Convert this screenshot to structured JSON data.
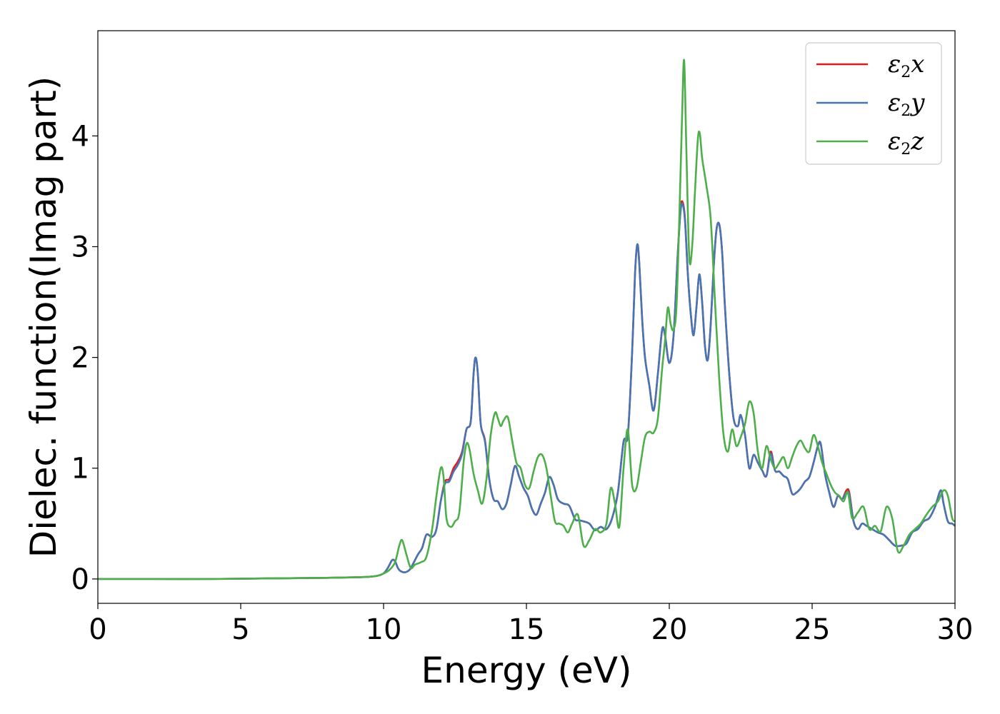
{
  "chart_data": {
    "type": "line",
    "title": "",
    "xlabel": "Energy (eV)",
    "ylabel": "Dielec. function(Imag part)",
    "xlim": [
      0,
      30
    ],
    "ylim": [
      -0.22,
      4.95
    ],
    "xticks": [
      0,
      5,
      10,
      15,
      20,
      25,
      30
    ],
    "yticks": [
      0,
      1,
      2,
      3,
      4
    ],
    "grid": false,
    "legend_position": "top-right",
    "series": [
      {
        "name": "ε2x",
        "label_base": "ε",
        "label_sub": "2",
        "label_suffix": "x",
        "color": "#e41a1c",
        "x": [
          0,
          2,
          4,
          6,
          8,
          9,
          9.5,
          9.8,
          10.0,
          10.15,
          10.3,
          10.4,
          10.5,
          10.6,
          10.75,
          10.9,
          11.0,
          11.2,
          11.35,
          11.5,
          11.7,
          11.85,
          12.0,
          12.15,
          12.3,
          12.45,
          12.6,
          12.75,
          12.9,
          13.05,
          13.15,
          13.22,
          13.3,
          13.4,
          13.55,
          13.7,
          13.85,
          14.0,
          14.15,
          14.3,
          14.45,
          14.6,
          14.75,
          14.9,
          15.05,
          15.2,
          15.35,
          15.5,
          15.65,
          15.8,
          15.95,
          16.1,
          16.3,
          16.5,
          16.7,
          16.85,
          17.0,
          17.2,
          17.4,
          17.6,
          17.8,
          18.0,
          18.2,
          18.4,
          18.55,
          18.7,
          18.8,
          18.88,
          18.95,
          19.05,
          19.15,
          19.3,
          19.45,
          19.6,
          19.75,
          19.85,
          20.0,
          20.15,
          20.3,
          20.4,
          20.47,
          20.55,
          20.65,
          20.75,
          20.85,
          20.95,
          21.05,
          21.15,
          21.25,
          21.35,
          21.45,
          21.55,
          21.65,
          21.75,
          21.85,
          21.95,
          22.1,
          22.25,
          22.4,
          22.5,
          22.65,
          22.8,
          22.95,
          23.1,
          23.25,
          23.4,
          23.55,
          23.7,
          23.85,
          24.0,
          24.15,
          24.3,
          24.45,
          24.6,
          24.75,
          24.9,
          25.05,
          25.2,
          25.3,
          25.45,
          25.6,
          25.75,
          25.9,
          26.05,
          26.2,
          26.3,
          26.45,
          26.6,
          26.75,
          26.9,
          27.1,
          27.3,
          27.5,
          27.7,
          27.9,
          28.1,
          28.3,
          28.5,
          28.7,
          28.9,
          29.1,
          29.3,
          29.5,
          29.6,
          29.75,
          29.9,
          30.0
        ],
        "y": [
          0.0,
          0.0,
          0.0,
          0.005,
          0.01,
          0.015,
          0.02,
          0.03,
          0.05,
          0.1,
          0.17,
          0.16,
          0.1,
          0.07,
          0.06,
          0.08,
          0.12,
          0.22,
          0.28,
          0.4,
          0.38,
          0.45,
          0.7,
          0.88,
          0.9,
          1.0,
          1.06,
          1.15,
          1.35,
          1.42,
          1.85,
          2.0,
          1.85,
          1.4,
          1.25,
          0.9,
          0.72,
          0.7,
          0.63,
          0.68,
          0.85,
          1.02,
          0.92,
          0.82,
          0.75,
          0.63,
          0.58,
          0.68,
          0.78,
          0.92,
          0.85,
          0.72,
          0.68,
          0.66,
          0.54,
          0.53,
          0.52,
          0.5,
          0.44,
          0.47,
          0.45,
          0.55,
          0.78,
          1.24,
          1.3,
          2.05,
          2.75,
          3.02,
          2.85,
          2.35,
          2.0,
          1.75,
          1.52,
          1.85,
          2.25,
          2.2,
          1.95,
          2.2,
          2.95,
          3.35,
          3.4,
          3.25,
          2.75,
          2.4,
          2.2,
          2.45,
          2.75,
          2.5,
          2.1,
          1.98,
          2.3,
          2.8,
          3.15,
          3.2,
          2.95,
          2.45,
          1.85,
          1.45,
          1.38,
          1.48,
          1.3,
          1.0,
          1.12,
          1.05,
          0.98,
          0.93,
          1.15,
          0.98,
          0.97,
          0.93,
          0.9,
          0.77,
          0.78,
          0.82,
          0.88,
          0.92,
          1.05,
          1.2,
          1.22,
          0.95,
          0.78,
          0.65,
          0.75,
          0.72,
          0.8,
          0.78,
          0.52,
          0.45,
          0.5,
          0.48,
          0.45,
          0.42,
          0.4,
          0.35,
          0.3,
          0.3,
          0.32,
          0.42,
          0.45,
          0.52,
          0.55,
          0.65,
          0.8,
          0.68,
          0.52,
          0.5,
          0.48
        ]
      },
      {
        "name": "ε2y",
        "label_base": "ε",
        "label_sub": "2",
        "label_suffix": "y",
        "color": "#4575b4",
        "x": [
          0,
          2,
          4,
          6,
          8,
          9,
          9.5,
          9.8,
          10.0,
          10.15,
          10.3,
          10.4,
          10.5,
          10.6,
          10.75,
          10.9,
          11.0,
          11.2,
          11.35,
          11.5,
          11.7,
          11.85,
          12.0,
          12.15,
          12.3,
          12.45,
          12.6,
          12.75,
          12.9,
          13.05,
          13.15,
          13.22,
          13.3,
          13.4,
          13.55,
          13.7,
          13.85,
          14.0,
          14.15,
          14.3,
          14.45,
          14.6,
          14.75,
          14.9,
          15.05,
          15.2,
          15.35,
          15.5,
          15.65,
          15.8,
          15.95,
          16.1,
          16.3,
          16.5,
          16.7,
          16.85,
          17.0,
          17.2,
          17.4,
          17.6,
          17.8,
          18.0,
          18.2,
          18.4,
          18.55,
          18.7,
          18.8,
          18.88,
          18.95,
          19.05,
          19.15,
          19.3,
          19.45,
          19.6,
          19.75,
          19.85,
          20.0,
          20.15,
          20.3,
          20.4,
          20.47,
          20.55,
          20.65,
          20.75,
          20.85,
          20.95,
          21.05,
          21.15,
          21.25,
          21.35,
          21.45,
          21.55,
          21.65,
          21.75,
          21.85,
          21.95,
          22.1,
          22.25,
          22.4,
          22.5,
          22.65,
          22.8,
          22.95,
          23.1,
          23.25,
          23.4,
          23.55,
          23.7,
          23.85,
          24.0,
          24.15,
          24.3,
          24.45,
          24.6,
          24.75,
          24.9,
          25.05,
          25.2,
          25.3,
          25.45,
          25.6,
          25.75,
          25.9,
          26.05,
          26.2,
          26.3,
          26.45,
          26.6,
          26.75,
          26.9,
          27.1,
          27.3,
          27.5,
          27.7,
          27.9,
          28.1,
          28.3,
          28.5,
          28.7,
          28.9,
          29.1,
          29.3,
          29.5,
          29.6,
          29.75,
          29.9,
          30.0
        ],
        "y": [
          0.0,
          0.0,
          0.0,
          0.005,
          0.01,
          0.015,
          0.02,
          0.03,
          0.05,
          0.1,
          0.17,
          0.16,
          0.1,
          0.07,
          0.06,
          0.08,
          0.12,
          0.22,
          0.28,
          0.4,
          0.38,
          0.45,
          0.7,
          0.86,
          0.88,
          0.97,
          1.03,
          1.13,
          1.35,
          1.42,
          1.85,
          2.0,
          1.85,
          1.4,
          1.24,
          0.9,
          0.72,
          0.7,
          0.63,
          0.68,
          0.85,
          1.02,
          0.92,
          0.82,
          0.75,
          0.63,
          0.58,
          0.68,
          0.78,
          0.92,
          0.85,
          0.72,
          0.68,
          0.66,
          0.54,
          0.53,
          0.52,
          0.5,
          0.44,
          0.47,
          0.45,
          0.55,
          0.78,
          1.24,
          1.3,
          2.05,
          2.75,
          3.02,
          2.85,
          2.35,
          2.0,
          1.75,
          1.52,
          1.85,
          2.25,
          2.2,
          1.95,
          2.2,
          2.95,
          3.33,
          3.38,
          3.23,
          2.75,
          2.4,
          2.2,
          2.45,
          2.75,
          2.5,
          2.1,
          1.98,
          2.3,
          2.8,
          3.15,
          3.2,
          2.95,
          2.45,
          1.85,
          1.45,
          1.38,
          1.48,
          1.3,
          1.0,
          1.12,
          1.05,
          0.98,
          0.93,
          1.13,
          0.98,
          0.97,
          0.93,
          0.9,
          0.77,
          0.78,
          0.82,
          0.88,
          0.92,
          1.05,
          1.2,
          1.22,
          0.95,
          0.78,
          0.65,
          0.75,
          0.72,
          0.78,
          0.76,
          0.52,
          0.45,
          0.5,
          0.48,
          0.45,
          0.42,
          0.4,
          0.35,
          0.3,
          0.3,
          0.32,
          0.42,
          0.45,
          0.52,
          0.55,
          0.65,
          0.8,
          0.68,
          0.52,
          0.5,
          0.48
        ]
      },
      {
        "name": "ε2z",
        "label_base": "ε",
        "label_sub": "2",
        "label_suffix": "z",
        "color": "#4daf4a",
        "x": [
          0,
          2,
          4,
          6,
          8,
          9,
          9.5,
          9.8,
          10.0,
          10.2,
          10.4,
          10.55,
          10.65,
          10.8,
          10.95,
          11.1,
          11.3,
          11.5,
          11.7,
          11.85,
          12.0,
          12.1,
          12.2,
          12.35,
          12.5,
          12.65,
          12.8,
          12.9,
          13.0,
          13.15,
          13.3,
          13.45,
          13.6,
          13.75,
          13.9,
          14.0,
          14.1,
          14.2,
          14.35,
          14.5,
          14.65,
          14.8,
          14.95,
          15.1,
          15.25,
          15.4,
          15.55,
          15.7,
          15.85,
          16.0,
          16.15,
          16.3,
          16.45,
          16.6,
          16.8,
          17.0,
          17.2,
          17.4,
          17.6,
          17.8,
          17.95,
          18.1,
          18.25,
          18.4,
          18.55,
          18.7,
          18.85,
          19.0,
          19.15,
          19.3,
          19.45,
          19.6,
          19.75,
          19.85,
          19.95,
          20.05,
          20.15,
          20.25,
          20.35,
          20.45,
          20.52,
          20.6,
          20.7,
          20.8,
          20.9,
          21.0,
          21.07,
          21.15,
          21.3,
          21.45,
          21.6,
          21.75,
          21.9,
          22.05,
          22.2,
          22.35,
          22.5,
          22.65,
          22.8,
          22.95,
          23.1,
          23.25,
          23.4,
          23.55,
          23.7,
          23.85,
          24.0,
          24.15,
          24.3,
          24.45,
          24.6,
          24.75,
          24.9,
          25.05,
          25.2,
          25.35,
          25.5,
          25.65,
          25.8,
          25.95,
          26.1,
          26.25,
          26.4,
          26.6,
          26.8,
          27.0,
          27.2,
          27.4,
          27.6,
          27.8,
          28.0,
          28.2,
          28.4,
          28.6,
          28.8,
          29.0,
          29.2,
          29.4,
          29.6,
          29.75,
          29.9,
          30.0
        ],
        "y": [
          0.0,
          0.0,
          0.0,
          0.005,
          0.01,
          0.015,
          0.02,
          0.03,
          0.05,
          0.08,
          0.15,
          0.3,
          0.35,
          0.22,
          0.1,
          0.13,
          0.15,
          0.2,
          0.45,
          0.75,
          1.0,
          0.92,
          0.55,
          0.47,
          0.52,
          0.6,
          1.05,
          1.22,
          1.18,
          0.95,
          0.8,
          0.68,
          0.9,
          1.3,
          1.5,
          1.45,
          1.38,
          1.43,
          1.46,
          1.25,
          1.05,
          1.0,
          0.85,
          0.82,
          0.97,
          1.1,
          1.12,
          1.0,
          0.75,
          0.52,
          0.5,
          0.48,
          0.42,
          0.5,
          0.58,
          0.3,
          0.35,
          0.45,
          0.42,
          0.5,
          0.82,
          0.68,
          0.47,
          1.0,
          1.35,
          0.85,
          0.82,
          1.05,
          1.28,
          1.33,
          1.32,
          1.45,
          1.9,
          2.15,
          2.45,
          2.3,
          2.25,
          2.45,
          3.25,
          4.2,
          4.68,
          3.85,
          2.9,
          3.0,
          3.5,
          3.97,
          4.02,
          3.8,
          3.55,
          3.25,
          2.5,
          1.8,
          1.3,
          1.15,
          1.35,
          1.2,
          1.28,
          1.4,
          1.6,
          1.5,
          1.15,
          1.0,
          1.2,
          1.08,
          1.0,
          1.05,
          1.1,
          1.0,
          1.1,
          1.2,
          1.25,
          1.18,
          1.15,
          1.3,
          1.2,
          1.05,
          0.95,
          0.85,
          0.78,
          0.75,
          0.7,
          0.78,
          0.55,
          0.6,
          0.65,
          0.45,
          0.48,
          0.43,
          0.65,
          0.55,
          0.25,
          0.3,
          0.4,
          0.45,
          0.5,
          0.58,
          0.65,
          0.7,
          0.8,
          0.75,
          0.55,
          0.52
        ]
      }
    ]
  }
}
